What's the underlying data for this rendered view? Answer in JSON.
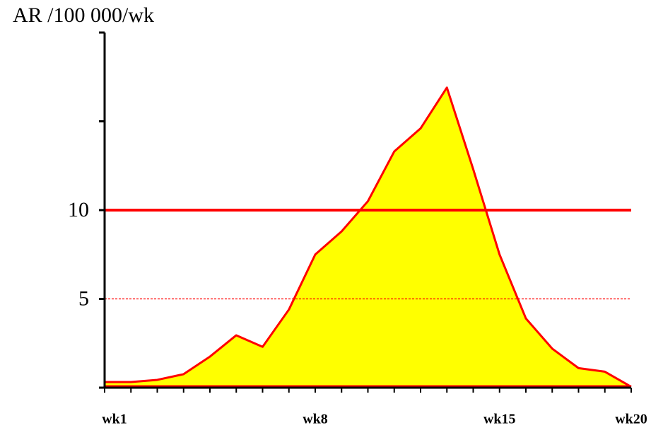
{
  "chart_data": {
    "type": "area",
    "ylabel": "AR /100 000/wk",
    "categories": [
      "wk1",
      null,
      null,
      null,
      null,
      null,
      null,
      null,
      "wk8",
      null,
      null,
      null,
      null,
      null,
      null,
      "wk15",
      null,
      null,
      null,
      null,
      "wk20"
    ],
    "series": [
      {
        "color": "#ff0000",
        "fill": "#ffff00",
        "values": [
          0.32,
          0.32,
          0.44,
          0.76,
          1.75,
          2.95,
          2.3,
          4.4,
          7.5,
          8.8,
          10.5,
          13.3,
          14.6,
          16.9,
          12.3,
          7.5,
          3.9,
          2.2,
          1.1,
          0.9,
          0.05
        ]
      }
    ],
    "ylim": [
      0,
      20
    ],
    "yticks": [
      {
        "value": 0,
        "label": null
      },
      5,
      10,
      {
        "value": 15,
        "label": null
      },
      {
        "value": 20,
        "label": null
      }
    ],
    "reference_lines": [
      {
        "value": 10,
        "style": "solid",
        "color": "#ff0000"
      },
      {
        "value": 5,
        "style": "dashed",
        "color": "#ff0000"
      }
    ],
    "grid": false
  }
}
